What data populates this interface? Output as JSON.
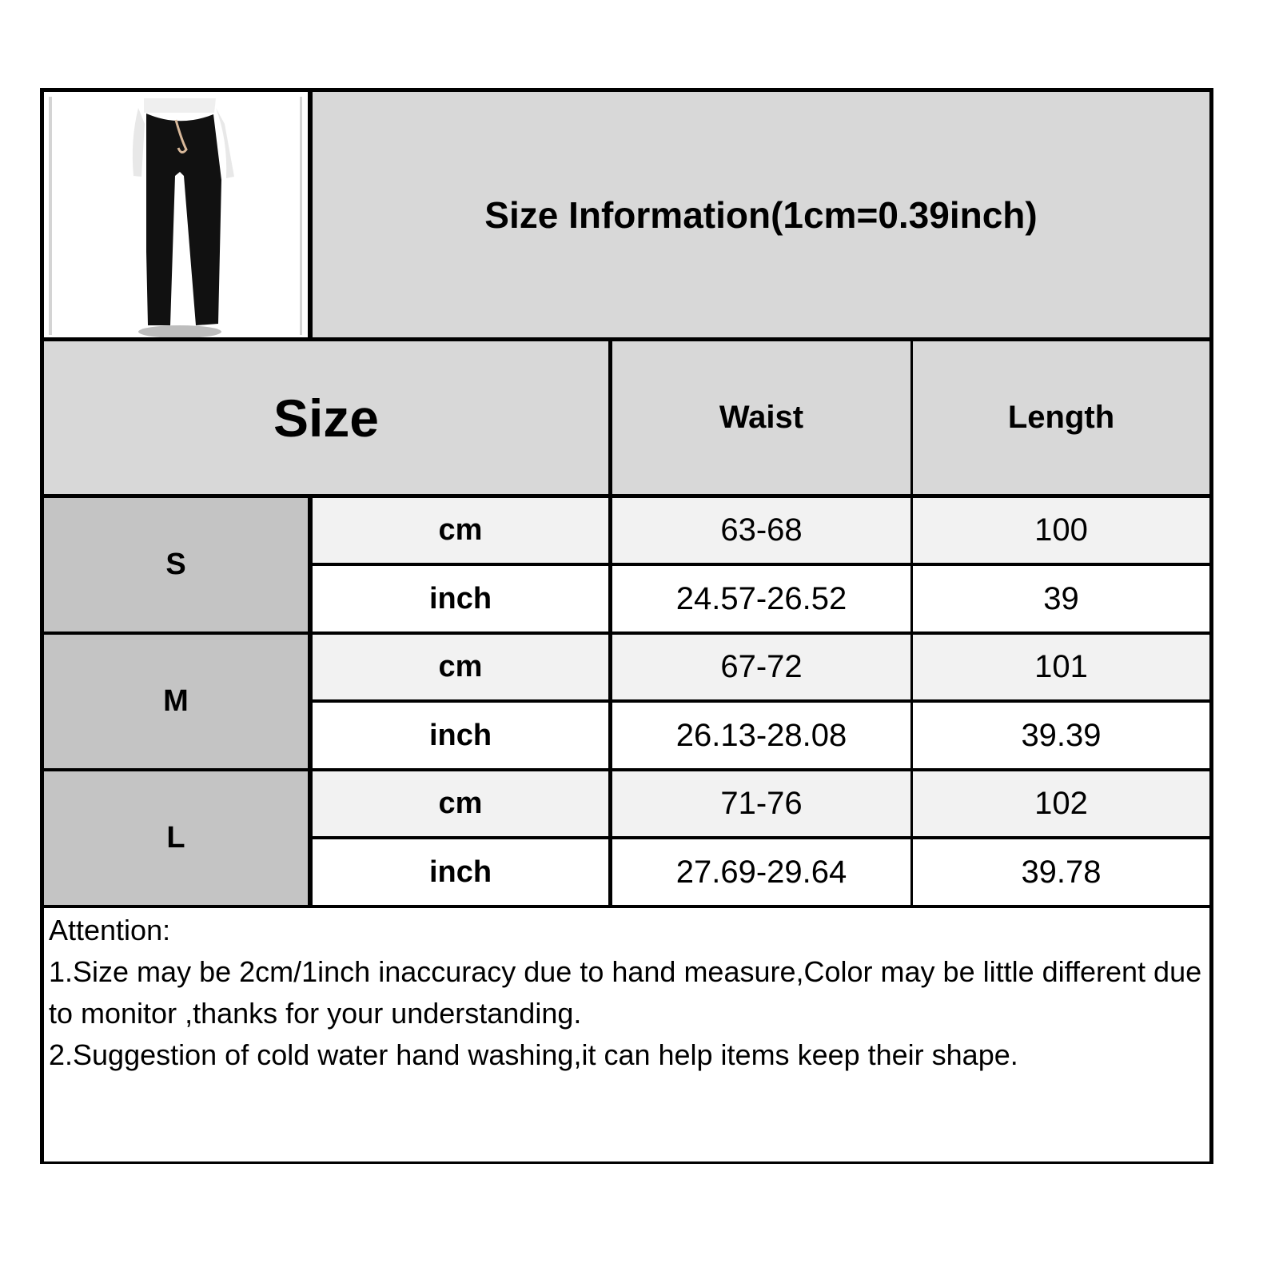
{
  "title": "Size Information(1cm=0.39inch)",
  "product_image": "black flared drawstring pants on mannequin",
  "headers": {
    "size": "Size",
    "waist": "Waist",
    "length": "Length"
  },
  "rows": [
    {
      "size": "S",
      "units": [
        {
          "unit": "cm",
          "waist": "63-68",
          "length": "100"
        },
        {
          "unit": "inch",
          "waist": "24.57-26.52",
          "length": "39"
        }
      ]
    },
    {
      "size": "M",
      "units": [
        {
          "unit": "cm",
          "waist": "67-72",
          "length": "101"
        },
        {
          "unit": "inch",
          "waist": "26.13-28.08",
          "length": "39.39"
        }
      ]
    },
    {
      "size": "L",
      "units": [
        {
          "unit": "cm",
          "waist": "71-76",
          "length": "102"
        },
        {
          "unit": "inch",
          "waist": "27.69-29.64",
          "length": "39.78"
        }
      ]
    }
  ],
  "attention": {
    "heading": "Attention:",
    "notes": [
      "1.Size may be 2cm/1inch inaccuracy due to hand measure,Color may be little different due to monitor ,thanks for your understanding.",
      "2.Suggestion of cold water hand washing,it can help items keep their shape."
    ]
  },
  "colors": {
    "header": "#d8d8d8",
    "size_cell": "#c4c4c4",
    "cm_row": "#f2f2f2",
    "inch_row": "#ffffff",
    "border": "#000000"
  }
}
